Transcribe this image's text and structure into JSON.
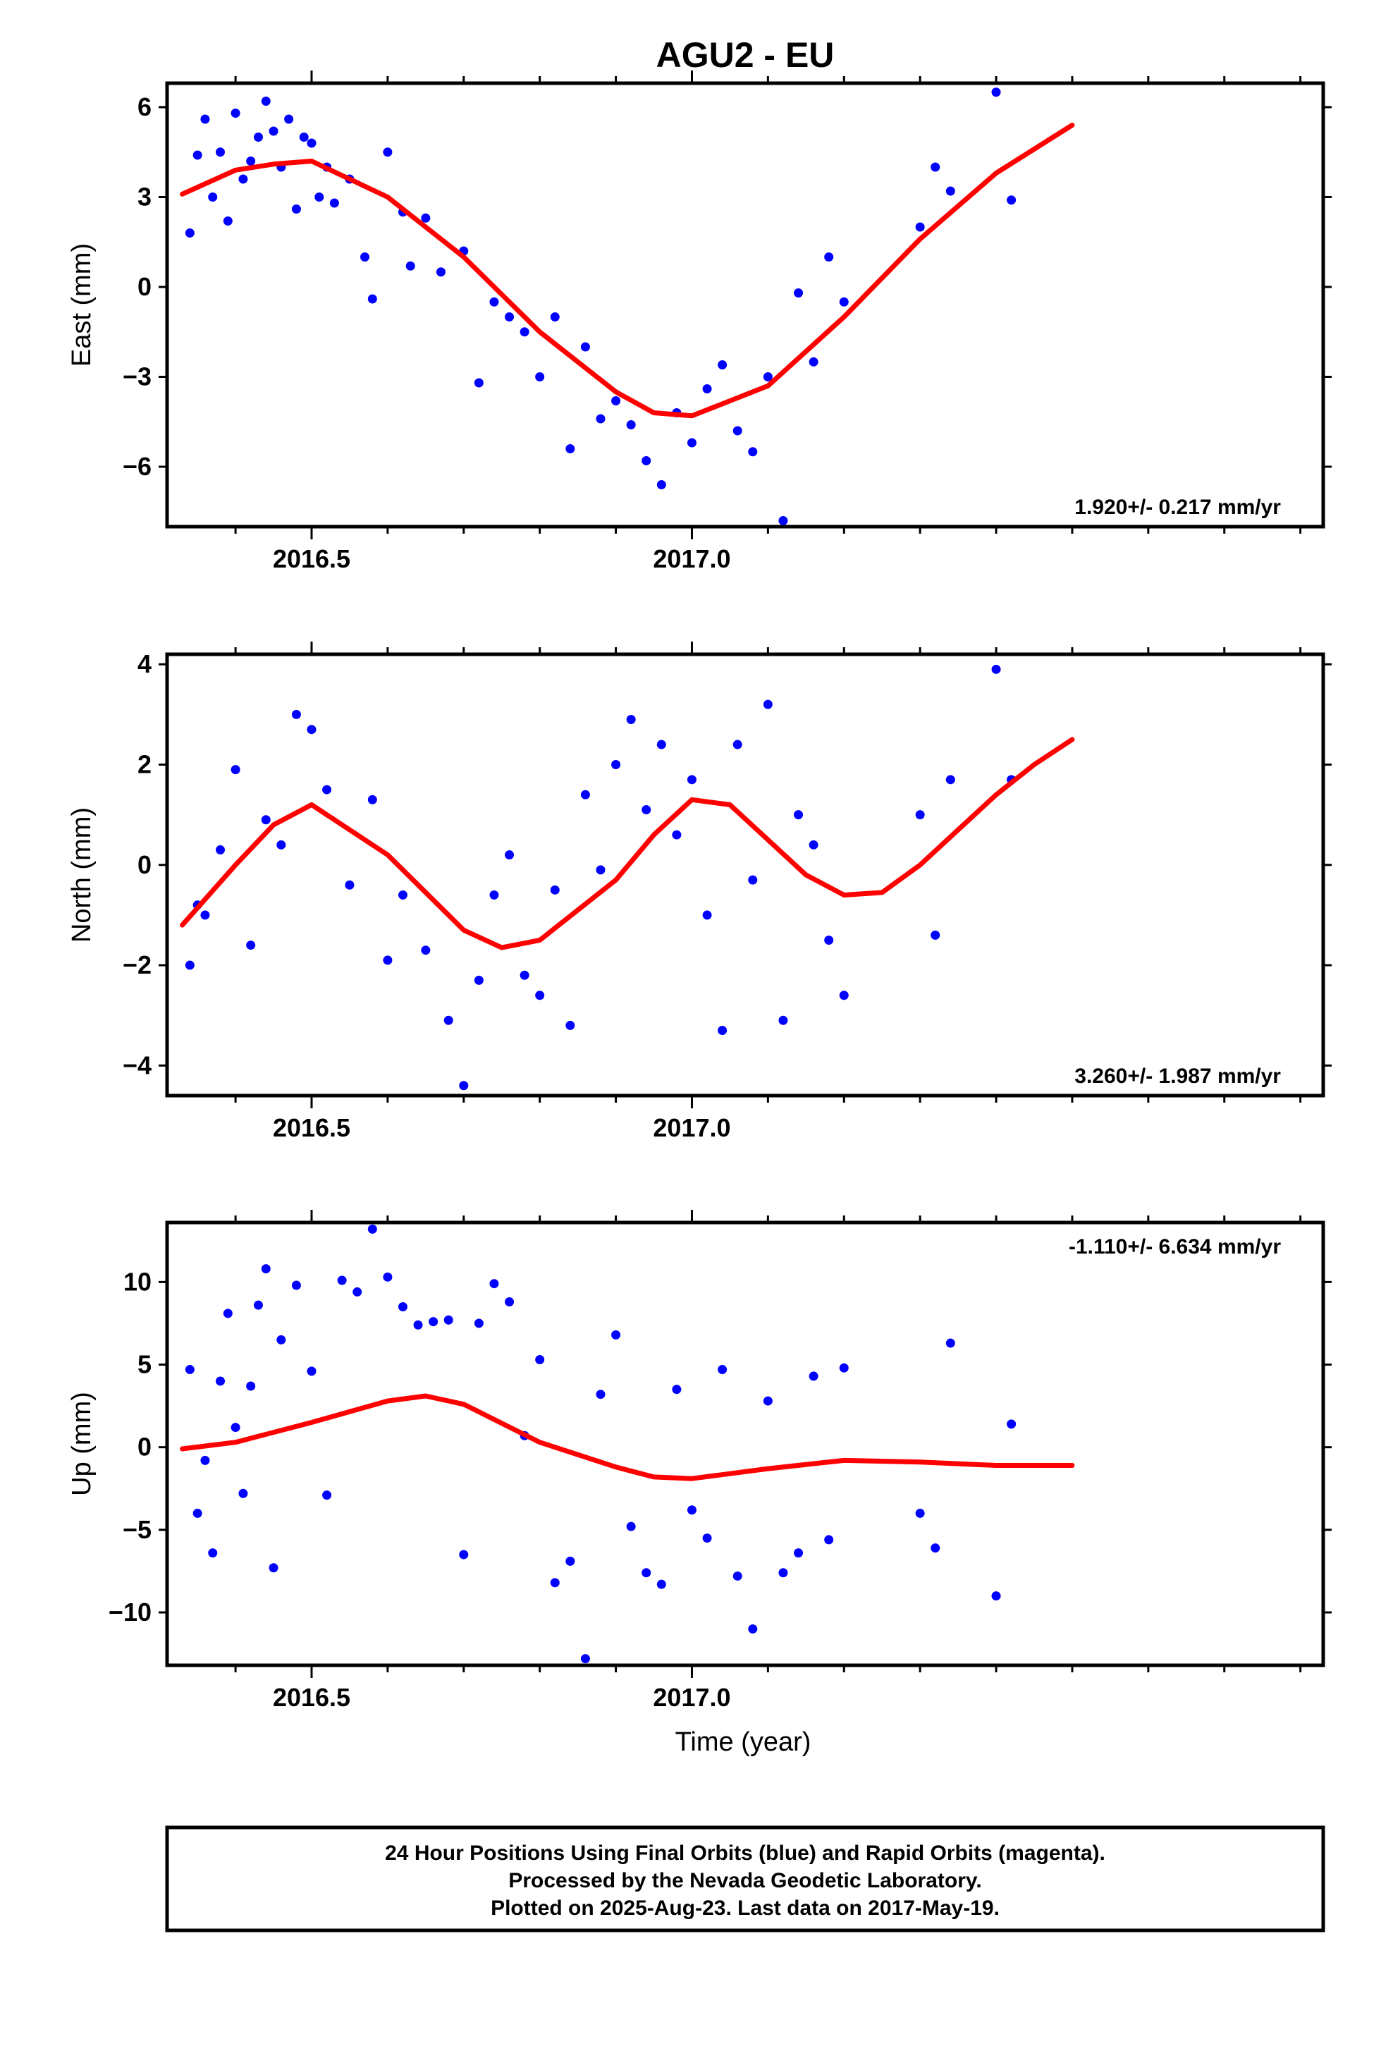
{
  "chart_data": [
    {
      "type": "scatter",
      "title": "AGU2 - EU",
      "ylabel": "East (mm)",
      "xlabel": "",
      "xlim": [
        2016.31,
        2017.83
      ],
      "ylim": [
        -8,
        6.8
      ],
      "yticks": [
        -6,
        -3,
        0,
        3,
        6
      ],
      "yticklabels": [
        "−6",
        "−3",
        "0",
        "3",
        "6"
      ],
      "xticks": [
        2016.5,
        2017.0
      ],
      "xticklabels": [
        "2016.5",
        "2017.0"
      ],
      "rate_label": "1.920+/- 0.217 mm/yr",
      "rate_position": "bottom-right",
      "fit_color": "#ff0000",
      "point_color": "#0000ff",
      "fit": {
        "x": [
          2016.33,
          2016.4,
          2016.45,
          2016.5,
          2016.6,
          2016.7,
          2016.8,
          2016.9,
          2016.95,
          2017.0,
          2017.1,
          2017.2,
          2017.3,
          2017.4,
          2017.5
        ],
        "y": [
          3.1,
          3.9,
          4.1,
          4.2,
          3.0,
          1.0,
          -1.5,
          -3.5,
          -4.2,
          -4.3,
          -3.3,
          -1.0,
          1.6,
          3.8,
          5.4
        ]
      },
      "points": {
        "x": [
          2016.34,
          2016.35,
          2016.36,
          2016.37,
          2016.38,
          2016.39,
          2016.4,
          2016.41,
          2016.42,
          2016.43,
          2016.44,
          2016.45,
          2016.46,
          2016.47,
          2016.48,
          2016.49,
          2016.5,
          2016.51,
          2016.52,
          2016.53,
          2016.55,
          2016.57,
          2016.58,
          2016.6,
          2016.62,
          2016.63,
          2016.65,
          2016.67,
          2016.7,
          2016.72,
          2016.74,
          2016.76,
          2016.78,
          2016.8,
          2016.82,
          2016.84,
          2016.86,
          2016.88,
          2016.9,
          2016.92,
          2016.94,
          2016.96,
          2016.98,
          2017.0,
          2017.02,
          2017.04,
          2017.06,
          2017.08,
          2017.1,
          2017.12,
          2017.14,
          2017.16,
          2017.18,
          2017.2,
          2017.3,
          2017.32,
          2017.34,
          2017.4,
          2017.42
        ],
        "y": [
          1.8,
          4.4,
          5.6,
          3.0,
          4.5,
          2.2,
          5.8,
          3.6,
          4.2,
          5.0,
          6.2,
          5.2,
          4.0,
          5.6,
          2.6,
          5.0,
          4.8,
          3.0,
          4.0,
          2.8,
          3.6,
          1.0,
          -0.4,
          4.5,
          2.5,
          0.7,
          2.3,
          0.5,
          1.2,
          -3.2,
          -0.5,
          -1.0,
          -1.5,
          -3.0,
          -1.0,
          -5.4,
          -2.0,
          -4.4,
          -3.8,
          -4.6,
          -5.8,
          -6.6,
          -4.2,
          -5.2,
          -3.4,
          -2.6,
          -4.8,
          -5.5,
          -3.0,
          -7.8,
          -0.2,
          -2.5,
          1.0,
          -0.5,
          2.0,
          4.0,
          3.2,
          6.5,
          2.9
        ]
      }
    },
    {
      "type": "scatter",
      "ylabel": "North (mm)",
      "xlabel": "",
      "xlim": [
        2016.31,
        2017.83
      ],
      "ylim": [
        -4.6,
        4.2
      ],
      "yticks": [
        -4,
        -2,
        0,
        2,
        4
      ],
      "yticklabels": [
        "−4",
        "−2",
        "0",
        "2",
        "4"
      ],
      "xticks": [
        2016.5,
        2017.0
      ],
      "xticklabels": [
        "2016.5",
        "2017.0"
      ],
      "rate_label": "3.260+/- 1.987 mm/yr",
      "rate_position": "bottom-right",
      "fit_color": "#ff0000",
      "point_color": "#0000ff",
      "fit": {
        "x": [
          2016.33,
          2016.4,
          2016.45,
          2016.5,
          2016.6,
          2016.7,
          2016.75,
          2016.8,
          2016.9,
          2016.95,
          2017.0,
          2017.05,
          2017.1,
          2017.15,
          2017.2,
          2017.25,
          2017.3,
          2017.35,
          2017.4,
          2017.45,
          2017.5
        ],
        "y": [
          -1.2,
          0.0,
          0.8,
          1.2,
          0.2,
          -1.3,
          -1.65,
          -1.5,
          -0.3,
          0.6,
          1.3,
          1.2,
          0.5,
          -0.2,
          -0.6,
          -0.55,
          0.0,
          0.7,
          1.4,
          2.0,
          2.5
        ]
      },
      "points": {
        "x": [
          2016.34,
          2016.35,
          2016.36,
          2016.38,
          2016.4,
          2016.42,
          2016.44,
          2016.46,
          2016.48,
          2016.5,
          2016.52,
          2016.55,
          2016.58,
          2016.6,
          2016.62,
          2016.65,
          2016.68,
          2016.7,
          2016.72,
          2016.74,
          2016.76,
          2016.78,
          2016.8,
          2016.82,
          2016.84,
          2016.86,
          2016.88,
          2016.9,
          2016.92,
          2016.94,
          2016.96,
          2016.98,
          2017.0,
          2017.02,
          2017.04,
          2017.06,
          2017.08,
          2017.1,
          2017.12,
          2017.14,
          2017.16,
          2017.18,
          2017.2,
          2017.3,
          2017.32,
          2017.34,
          2017.4,
          2017.42
        ],
        "y": [
          -2.0,
          -0.8,
          -1.0,
          0.3,
          1.9,
          -1.6,
          0.9,
          0.4,
          3.0,
          2.7,
          1.5,
          -0.4,
          1.3,
          -1.9,
          -0.6,
          -1.7,
          -3.1,
          -4.4,
          -2.3,
          -0.6,
          0.2,
          -2.2,
          -2.6,
          -0.5,
          -3.2,
          1.4,
          -0.1,
          2.0,
          2.9,
          1.1,
          2.4,
          0.6,
          1.7,
          -1.0,
          -3.3,
          2.4,
          -0.3,
          3.2,
          -3.1,
          1.0,
          0.4,
          -1.5,
          -2.6,
          1.0,
          -1.4,
          1.7,
          3.9,
          1.7
        ]
      }
    },
    {
      "type": "scatter",
      "ylabel": "Up (mm)",
      "xlabel": "Time (year)",
      "xlim": [
        2016.31,
        2017.83
      ],
      "ylim": [
        -13.2,
        13.6
      ],
      "yticks": [
        -10,
        -5,
        0,
        5,
        10
      ],
      "yticklabels": [
        "−10",
        "−5",
        "0",
        "5",
        "10"
      ],
      "xticks": [
        2016.5,
        2017.0
      ],
      "xticklabels": [
        "2016.5",
        "2017.0"
      ],
      "rate_label": "-1.110+/- 6.634 mm/yr",
      "rate_position": "top-right",
      "fit_color": "#ff0000",
      "point_color": "#0000ff",
      "fit": {
        "x": [
          2016.33,
          2016.4,
          2016.5,
          2016.6,
          2016.65,
          2016.7,
          2016.8,
          2016.9,
          2016.95,
          2017.0,
          2017.05,
          2017.1,
          2017.2,
          2017.3,
          2017.4,
          2017.5
        ],
        "y": [
          -0.1,
          0.3,
          1.5,
          2.8,
          3.1,
          2.6,
          0.3,
          -1.2,
          -1.8,
          -1.9,
          -1.6,
          -1.3,
          -0.8,
          -0.9,
          -1.1,
          -1.1
        ]
      },
      "points": {
        "x": [
          2016.34,
          2016.35,
          2016.36,
          2016.37,
          2016.38,
          2016.39,
          2016.4,
          2016.41,
          2016.42,
          2016.43,
          2016.44,
          2016.45,
          2016.46,
          2016.48,
          2016.5,
          2016.52,
          2016.54,
          2016.56,
          2016.58,
          2016.6,
          2016.62,
          2016.64,
          2016.66,
          2016.68,
          2016.7,
          2016.72,
          2016.74,
          2016.76,
          2016.78,
          2016.8,
          2016.82,
          2016.84,
          2016.86,
          2016.88,
          2016.9,
          2016.92,
          2016.94,
          2016.96,
          2016.98,
          2017.0,
          2017.02,
          2017.04,
          2017.06,
          2017.08,
          2017.1,
          2017.12,
          2017.14,
          2017.16,
          2017.18,
          2017.2,
          2017.3,
          2017.32,
          2017.34,
          2017.4,
          2017.42
        ],
        "y": [
          4.7,
          -4.0,
          -0.8,
          -6.4,
          4.0,
          8.1,
          1.2,
          -2.8,
          3.7,
          8.6,
          10.8,
          -7.3,
          6.5,
          9.8,
          4.6,
          -2.9,
          10.1,
          9.4,
          13.2,
          10.3,
          8.5,
          7.4,
          7.6,
          7.7,
          -6.5,
          7.5,
          9.9,
          8.8,
          0.7,
          5.3,
          -8.2,
          -6.9,
          -12.8,
          3.2,
          6.8,
          -4.8,
          -7.6,
          -8.3,
          3.5,
          -3.8,
          -5.5,
          4.7,
          -7.8,
          -11.0,
          2.8,
          -7.6,
          -6.4,
          4.3,
          -5.6,
          4.8,
          -4.0,
          -6.1,
          6.3,
          -9.0,
          1.4
        ]
      }
    }
  ],
  "footer": {
    "line1": "24 Hour Positions Using Final Orbits (blue) and Rapid Orbits (magenta).",
    "line2": "Processed by the Nevada Geodetic Laboratory.",
    "line3": "Plotted on 2025-Aug-23. Last data on 2017-May-19."
  }
}
